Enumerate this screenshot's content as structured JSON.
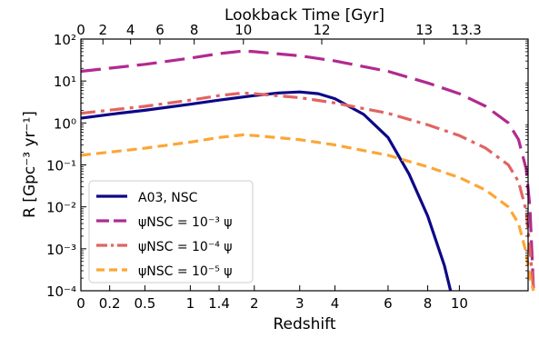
{
  "chart_data": {
    "type": "line",
    "title": "",
    "xlabel": "Redshift",
    "ylabel": "R [Gpc⁻³ yr⁻¹]",
    "top_xlabel": "Lookback Time [Gyr]",
    "yscale": "log",
    "ylim": [
      0.0001,
      100
    ],
    "x_ticks": [
      "0",
      "0.2",
      "0.5",
      "1",
      "1.4",
      "2",
      "3",
      "4",
      "6",
      "8",
      "10"
    ],
    "x_tick_values": [
      0,
      0.2,
      0.5,
      1,
      1.4,
      2,
      3,
      4,
      6,
      8,
      10
    ],
    "top_ticks": [
      "0",
      "2",
      "4",
      "6",
      "8",
      "10",
      "12",
      "13",
      "13.3"
    ],
    "top_tick_redshifts": [
      0,
      0.15,
      0.37,
      0.65,
      1.05,
      1.8,
      3.6,
      7.8,
      10.5
    ],
    "y_ticks": [
      "10⁻⁴",
      "10⁻³",
      "10⁻²",
      "10⁻¹",
      "10⁰",
      "10¹",
      "10²"
    ],
    "y_tick_values": [
      0.0001,
      0.001,
      0.01,
      0.1,
      1,
      10,
      100
    ],
    "legend_position": "lower-left",
    "grid": false,
    "series": [
      {
        "name": "A03, NSC",
        "color": "#0d0887",
        "dash": "solid",
        "x": [
          0,
          0.2,
          0.5,
          1,
          1.4,
          2,
          2.5,
          3,
          3.5,
          4,
          5,
          6,
          7,
          8,
          9,
          9.4
        ],
        "y": [
          1.3,
          1.6,
          2.0,
          2.8,
          3.5,
          4.5,
          5.2,
          5.5,
          5.0,
          3.8,
          1.6,
          0.45,
          0.06,
          0.006,
          0.0004,
          0.0001
        ]
      },
      {
        "name": "ψNSC = 10⁻³ ψ",
        "color": "#b12a90",
        "dash": "long",
        "x": [
          0,
          0.5,
          1,
          1.4,
          1.8,
          2,
          3,
          4,
          6,
          8,
          10,
          12,
          14,
          15,
          15.8,
          16.2,
          16.6
        ],
        "y": [
          17,
          25,
          35,
          45,
          52,
          50,
          40,
          30,
          17,
          9,
          5,
          2.5,
          1,
          0.4,
          0.08,
          0.01,
          0.0001
        ]
      },
      {
        "name": "ψNSC = 10⁻⁴ ψ",
        "color": "#e16462",
        "dash": "dashdot",
        "x": [
          0,
          0.5,
          1,
          1.4,
          1.8,
          2,
          3,
          4,
          6,
          8,
          10,
          12,
          14,
          15,
          15.8,
          16.2,
          16.6
        ],
        "y": [
          1.7,
          2.5,
          3.5,
          4.5,
          5.2,
          5.0,
          4.0,
          3.0,
          1.7,
          0.9,
          0.5,
          0.25,
          0.1,
          0.04,
          0.008,
          0.001,
          0.0001
        ]
      },
      {
        "name": "ψNSC = 10⁻⁵ ψ",
        "color": "#fca636",
        "dash": "dashed",
        "x": [
          0,
          0.5,
          1,
          1.4,
          1.8,
          2,
          3,
          4,
          6,
          8,
          10,
          12,
          14,
          15,
          15.8,
          16.2,
          16.6
        ],
        "y": [
          0.17,
          0.25,
          0.35,
          0.45,
          0.52,
          0.5,
          0.4,
          0.3,
          0.17,
          0.09,
          0.05,
          0.025,
          0.01,
          0.004,
          0.0008,
          0.0002,
          0.0001
        ]
      }
    ]
  },
  "colors": {
    "axis": "#000000",
    "legend_border": "#cccccc"
  }
}
